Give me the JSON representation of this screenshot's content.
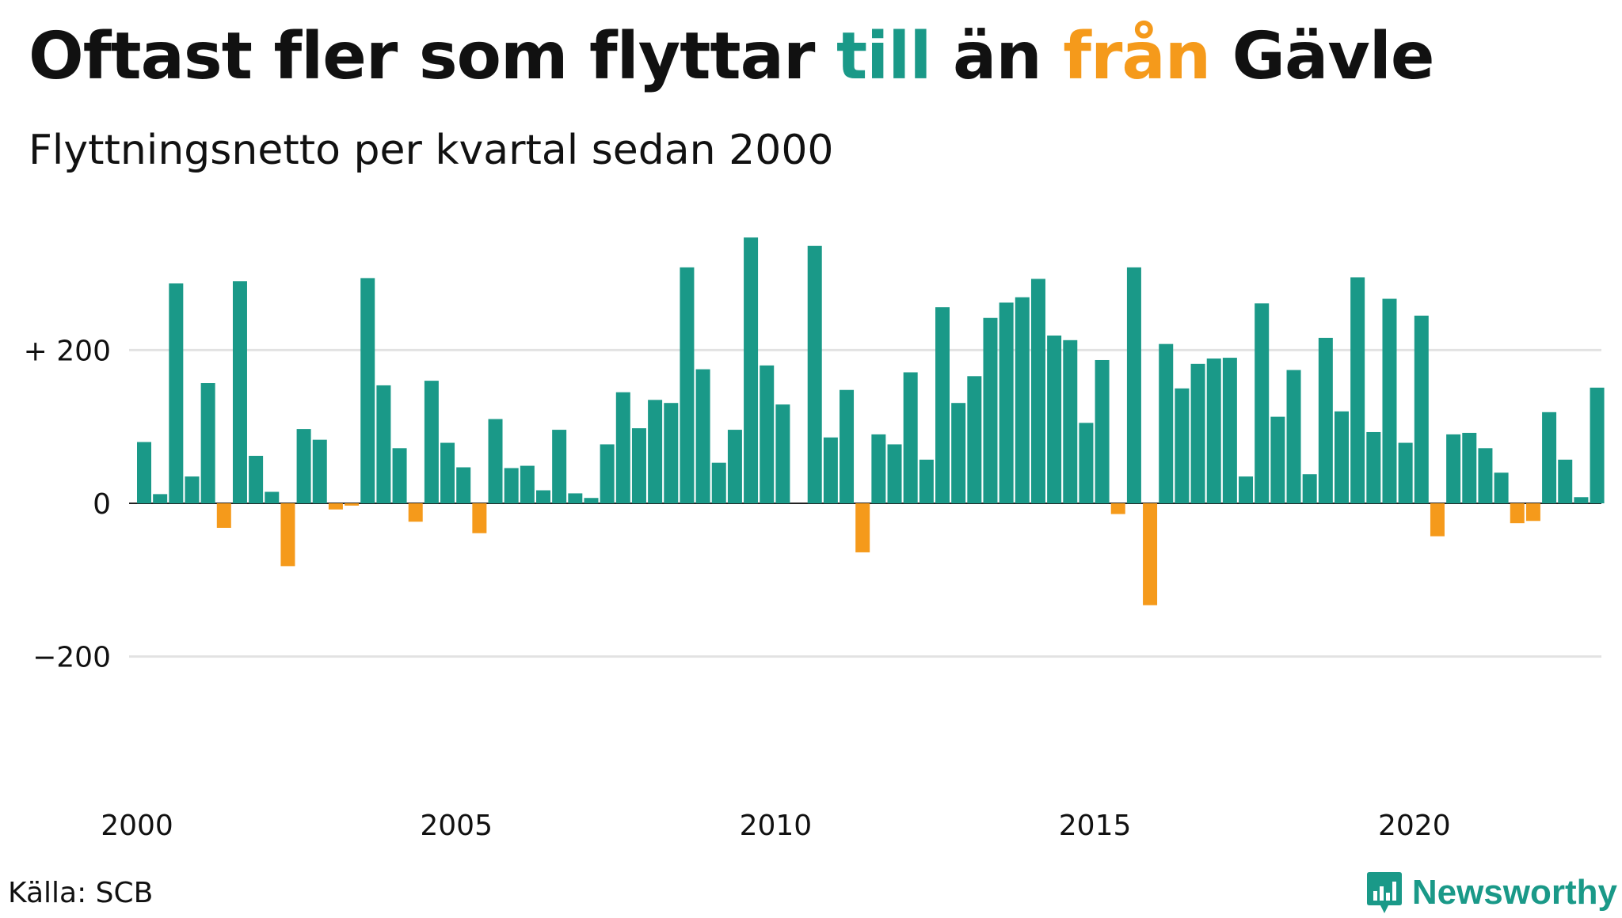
{
  "header": {
    "title_parts": [
      {
        "text": "Oftast fler som flyttar "
      },
      {
        "text": "till",
        "color": "#1a9988"
      },
      {
        "text": " än "
      },
      {
        "text": "från",
        "color": "#f59a1b"
      },
      {
        "text": " Gävle"
      }
    ],
    "subtitle": "Flyttningsnetto per kvartal sedan 2000"
  },
  "footer": {
    "source": "Källa: SCB",
    "logo_text": "Newsworthy",
    "logo_color": "#1a9988",
    "logo_icon": "bar-chart-speech-bubble-icon"
  },
  "chart_data": {
    "type": "bar",
    "x_start": 2000,
    "period": "quarter",
    "colors": {
      "positive": "#1a9988",
      "negative": "#f59a1b",
      "grid": "#e2e2e2",
      "zero": "#222222"
    },
    "ylim": [
      -300,
      350
    ],
    "y_ticks": [
      {
        "value": 200,
        "label": "+ 200"
      },
      {
        "value": 0,
        "label": "0"
      },
      {
        "value": -200,
        "label": "−200"
      }
    ],
    "x_ticks": [
      {
        "value": 2000,
        "label": "2000"
      },
      {
        "value": 2005,
        "label": "2005"
      },
      {
        "value": 2010,
        "label": "2010"
      },
      {
        "value": 2015,
        "label": "2015"
      },
      {
        "value": 2020,
        "label": "2020"
      }
    ],
    "grid": true,
    "values": [
      80,
      12,
      287,
      35,
      157,
      -32,
      290,
      62,
      15,
      -82,
      97,
      83,
      -8,
      -3,
      294,
      154,
      72,
      -24,
      160,
      79,
      47,
      -39,
      110,
      46,
      49,
      17,
      96,
      13,
      7,
      77,
      145,
      98,
      135,
      131,
      308,
      175,
      53,
      96,
      347,
      180,
      129,
      0,
      336,
      86,
      148,
      -64,
      90,
      77,
      171,
      57,
      256,
      131,
      166,
      242,
      262,
      269,
      293,
      219,
      213,
      105,
      187,
      -14,
      308,
      -133,
      208,
      150,
      182,
      189,
      190,
      35,
      261,
      113,
      174,
      38,
      216,
      120,
      295,
      93,
      267,
      79,
      245,
      -43,
      90,
      92,
      72,
      40,
      -26,
      -23,
      119,
      57,
      8,
      151
    ]
  }
}
